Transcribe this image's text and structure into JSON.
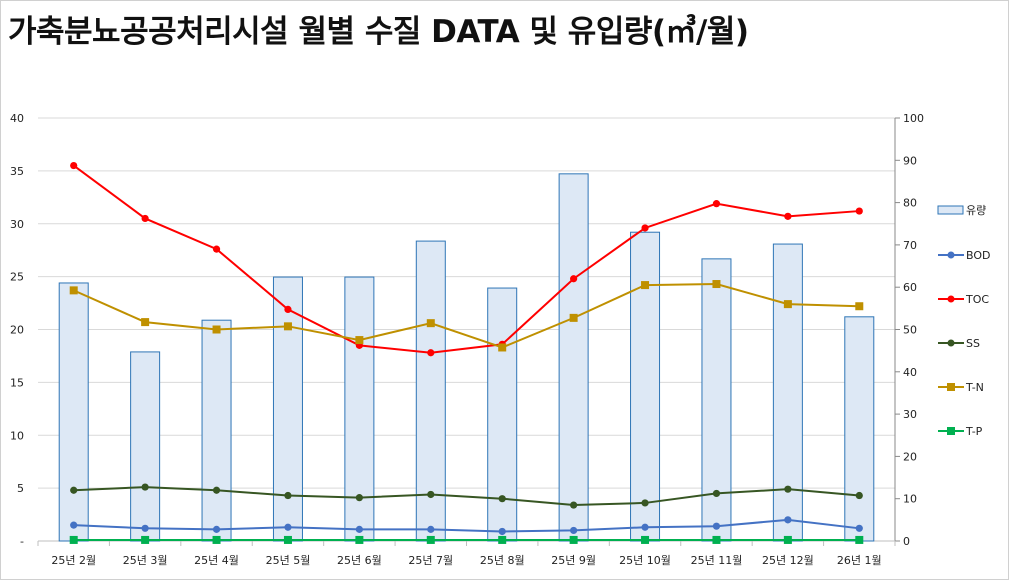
{
  "title": "가축분뇨공공처리시설 월별 수질 DATA 및 유입량(㎥/월)",
  "chart_data": {
    "type": "bar+line",
    "title": "가축분뇨공공처리시설 월별 수질 DATA 및 유입량(㎥/월)",
    "categories": [
      "25년 2월",
      "25년 3월",
      "25년 4월",
      "25년 5월",
      "25년 6월",
      "25년 7월",
      "25년 8월",
      "25년 9월",
      "25년 10월",
      "25년 11월",
      "25년 12월",
      "26년 1월"
    ],
    "left_axis": {
      "range": [
        0,
        40
      ],
      "ticks": [
        0,
        5,
        10,
        15,
        20,
        25,
        30,
        35,
        40
      ],
      "tick_labels": [
        "-",
        "5",
        "10",
        "15",
        "20",
        "25",
        "30",
        "35",
        "40"
      ]
    },
    "right_axis": {
      "range": [
        0,
        100
      ],
      "ticks": [
        0,
        10,
        20,
        30,
        40,
        50,
        60,
        70,
        80,
        90,
        100
      ],
      "tick_labels": [
        "0",
        "10",
        "20",
        "30",
        "40",
        "50",
        "60",
        "70",
        "80",
        "90",
        "100"
      ]
    },
    "grid": true,
    "legend_position": "right",
    "series": [
      {
        "name": "유량",
        "type": "bar",
        "axis": "right",
        "color": "#dde8f5",
        "edge": "#2e75b6",
        "marker": "none",
        "values": [
          61.0,
          44.7,
          52.2,
          62.4,
          62.4,
          70.9,
          59.8,
          86.8,
          73.0,
          66.7,
          70.2,
          53.0
        ]
      },
      {
        "name": "BOD",
        "type": "line",
        "axis": "left",
        "color": "#4472c4",
        "marker": "circle",
        "values": [
          1.5,
          1.2,
          1.1,
          1.3,
          1.1,
          1.1,
          0.9,
          1.0,
          1.3,
          1.4,
          2.0,
          1.2
        ]
      },
      {
        "name": "TOC",
        "type": "line",
        "axis": "left",
        "color": "#ff0000",
        "marker": "circle",
        "values": [
          35.5,
          30.5,
          27.6,
          21.9,
          18.5,
          17.8,
          18.6,
          24.8,
          29.6,
          31.9,
          30.7,
          31.2
        ]
      },
      {
        "name": "SS",
        "type": "line",
        "axis": "left",
        "color": "#375623",
        "marker": "circle",
        "values": [
          4.8,
          5.1,
          4.8,
          4.3,
          4.1,
          4.4,
          4.0,
          3.4,
          3.6,
          4.5,
          4.9,
          4.3
        ]
      },
      {
        "name": "T-N",
        "type": "line",
        "axis": "left",
        "color": "#bf9000",
        "marker": "square",
        "values": [
          23.7,
          20.7,
          20.0,
          20.3,
          19.0,
          20.6,
          18.3,
          21.1,
          24.2,
          24.3,
          22.4,
          22.2
        ]
      },
      {
        "name": "T-P",
        "type": "line",
        "axis": "left",
        "color": "#00b050",
        "marker": "square",
        "values": [
          0.1,
          0.1,
          0.1,
          0.1,
          0.1,
          0.1,
          0.1,
          0.1,
          0.1,
          0.1,
          0.1,
          0.1
        ]
      }
    ]
  }
}
